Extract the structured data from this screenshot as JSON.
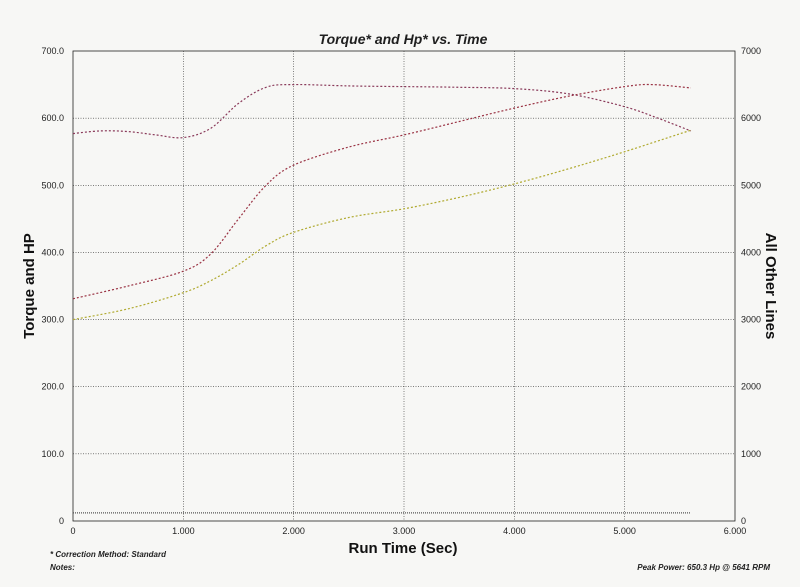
{
  "chart_data": {
    "type": "line",
    "title": "Torque* and Hp* vs. Time",
    "xlabel": "Run Time (Sec)",
    "ylabel": "Torque and HP",
    "y2label": "All Other Lines",
    "xlim": [
      0,
      6
    ],
    "ylim": [
      0,
      700
    ],
    "y2lim": [
      0,
      7000
    ],
    "x_ticks": [
      "0",
      "1.000",
      "2.000",
      "3.000",
      "4.000",
      "5.000",
      "6.000"
    ],
    "y_ticks": [
      "0",
      "100.0",
      "200.0",
      "300.0",
      "400.0",
      "500.0",
      "600.0",
      "700.0"
    ],
    "y2_ticks": [
      "0",
      "1000",
      "2000",
      "3000",
      "4000",
      "5000",
      "6000",
      "7000"
    ],
    "grid": true,
    "series": [
      {
        "color": "#8a3a5a",
        "dash": "2,2",
        "axis": "y",
        "x": [
          0,
          0.25,
          0.5,
          0.75,
          1.0,
          1.25,
          1.5,
          1.75,
          2.0,
          2.5,
          3.0,
          3.5,
          4.0,
          4.5,
          5.0,
          5.3,
          5.6
        ],
        "y": [
          577,
          581,
          580,
          575,
          571,
          585,
          622,
          646,
          650,
          648,
          647,
          646,
          644,
          636,
          617,
          600,
          581
        ]
      },
      {
        "color": "#9a3344",
        "dash": "2,2",
        "axis": "y",
        "x": [
          0,
          0.5,
          1.0,
          1.25,
          1.5,
          1.75,
          2.0,
          2.5,
          3.0,
          3.5,
          4.0,
          4.5,
          5.0,
          5.25,
          5.6
        ],
        "y": [
          331,
          350,
          372,
          398,
          450,
          500,
          530,
          557,
          575,
          595,
          615,
          633,
          647,
          650,
          645
        ]
      },
      {
        "color": "#b0aa30",
        "dash": "2,2",
        "axis": "y",
        "x": [
          0,
          0.5,
          1.0,
          1.25,
          1.5,
          1.75,
          2.0,
          2.5,
          3.0,
          3.5,
          4.0,
          4.5,
          5.0,
          5.6
        ],
        "y": [
          300,
          316,
          340,
          358,
          382,
          410,
          430,
          452,
          465,
          482,
          502,
          525,
          550,
          582
        ]
      },
      {
        "color": "#555555",
        "dash": "1,1",
        "axis": "y",
        "x": [
          0,
          5.6
        ],
        "y": [
          12,
          12
        ]
      }
    ],
    "notes": {
      "correction": "* Correction Method: Standard",
      "notes": "Notes:",
      "peak": "Peak Power: 650.3 Hp @ 5641 RPM"
    },
    "colors": {
      "grid": "#333333",
      "frame": "#222222"
    }
  }
}
